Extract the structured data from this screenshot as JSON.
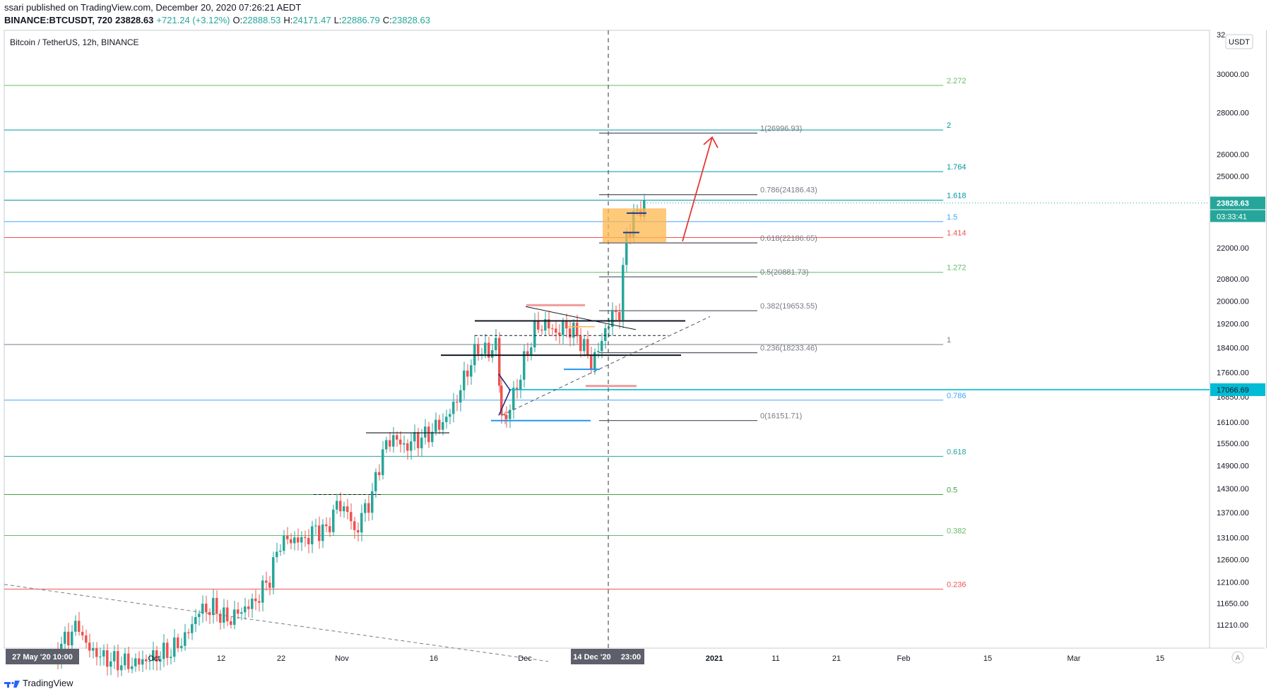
{
  "header": {
    "publish_line": "ssari published on TradingView.com, December 20, 2020 07:26:21 AEDT",
    "symbol_line": {
      "symbol": "BINANCE:BTCUSDT, 720",
      "last": "23828.63",
      "change": "+721.24 (+3.12%)",
      "o_label": "O:",
      "o_value": "22888.53",
      "h_label": "H:",
      "h_value": "24171.47",
      "l_label": "L:",
      "l_value": "22886.79",
      "c_label": "C:",
      "c_value": "23828.63"
    }
  },
  "pane_title": "Bitcoin / TetherUS, 12h, BINANCE",
  "currency_button": "USDT",
  "footer": {
    "brand": "TradingView",
    "icon": "tradingview-logo-icon"
  },
  "colors": {
    "up": "#26a69a",
    "down": "#ef5350",
    "accent_price": "#26a69a",
    "hline_price": "#00bcd4"
  },
  "chart_data": {
    "type": "candlestick",
    "timeframe": "12h",
    "y_scale": "log",
    "y_axis_ticks": [
      "32",
      "30000.00",
      "28000.00",
      "26000.00",
      "25000.00",
      "22000.00",
      "20800.00",
      "20000.00",
      "19200.00",
      "18400.00",
      "17600.00",
      "16850.00",
      "16100.00",
      "15500.00",
      "14900.00",
      "14300.00",
      "13700.00",
      "13100.00",
      "12600.00",
      "12100.00",
      "11650.00",
      "11210.00"
    ],
    "x_axis_ticks": [
      "Oct",
      "12",
      "22",
      "Nov",
      "16",
      "Dec",
      "14 Dec '20",
      "23:00",
      "2021",
      "11",
      "21",
      "Feb",
      "15",
      "Mar",
      "15"
    ],
    "crosshair_label_left": "27 May '20  10:00",
    "price_labels": [
      {
        "text": "23828.63",
        "kind": "last-price"
      },
      {
        "text": "03:33:41",
        "kind": "countdown"
      },
      {
        "text": "17066.69",
        "kind": "horizontal-line"
      }
    ],
    "fib_extension_levels": [
      {
        "ratio": "2.272",
        "price": 29400,
        "color": "#66bb6a"
      },
      {
        "ratio": "2",
        "price": 27150,
        "color": "#0097a7"
      },
      {
        "ratio": "1.764",
        "price": 25200,
        "color": "#0097a7"
      },
      {
        "ratio": "1.618",
        "price": 23950,
        "color": "#0097a7"
      },
      {
        "ratio": "1.5",
        "price": 23050,
        "color": "#42a5f5"
      },
      {
        "ratio": "1.414",
        "price": 22400,
        "color": "#ef5350"
      },
      {
        "ratio": "1.272",
        "price": 21050,
        "color": "#66bb6a"
      },
      {
        "ratio": "1",
        "price": 18500,
        "color": "#787b86"
      },
      {
        "ratio": "0.786",
        "price": 16750,
        "color": "#42a5f5"
      },
      {
        "ratio": "0.618",
        "price": 15150,
        "color": "#26a69a"
      },
      {
        "ratio": "0.5",
        "price": 14150,
        "color": "#43a047"
      },
      {
        "ratio": "0.382",
        "price": 13150,
        "color": "#66bb6a"
      },
      {
        "ratio": "0.236",
        "price": 11950,
        "color": "#ef5350"
      }
    ],
    "fib_retracement_levels": [
      {
        "label": "1(26996.93)",
        "price": 26996.93
      },
      {
        "label": "0.786(24186.43)",
        "price": 24186.43
      },
      {
        "label": "0.618(22186.65)",
        "price": 22186.65
      },
      {
        "label": "0.5(20881.73)",
        "price": 20881.73
      },
      {
        "label": "0.382(19653.55)",
        "price": 19653.55
      },
      {
        "label": "0.236(18233.46)",
        "price": 18233.46
      },
      {
        "label": "0(16151.71)",
        "price": 16151.71
      }
    ],
    "horizontal_line_price": 17066.69,
    "last_price": 23828.63
  }
}
